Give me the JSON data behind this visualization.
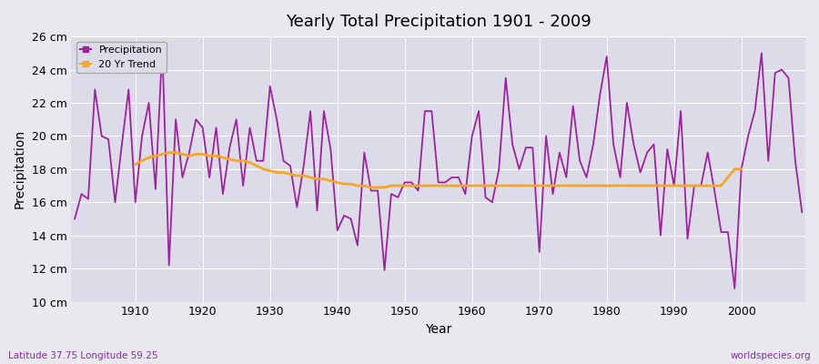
{
  "title": "Yearly Total Precipitation 1901 - 2009",
  "xlabel": "Year",
  "ylabel": "Precipitation",
  "bottom_left": "Latitude 37.75 Longitude 59.25",
  "bottom_right": "worldspecies.org",
  "precip_color": "#a020a0",
  "trend_color": "#f5a623",
  "fig_bg_color": "#e8e8ee",
  "ax_bg_color": "#dcdce8",
  "ylim": [
    10,
    26
  ],
  "yticks": [
    10,
    12,
    14,
    16,
    18,
    20,
    22,
    24,
    26
  ],
  "ytick_labels": [
    "10 cm",
    "12 cm",
    "14 cm",
    "16 cm",
    "18 cm",
    "20 cm",
    "22 cm",
    "24 cm",
    "26 cm"
  ],
  "years": [
    1901,
    1902,
    1903,
    1904,
    1905,
    1906,
    1907,
    1908,
    1909,
    1910,
    1911,
    1912,
    1913,
    1914,
    1915,
    1916,
    1917,
    1918,
    1919,
    1920,
    1921,
    1922,
    1923,
    1924,
    1925,
    1926,
    1927,
    1928,
    1929,
    1930,
    1931,
    1932,
    1933,
    1934,
    1935,
    1936,
    1937,
    1938,
    1939,
    1940,
    1941,
    1942,
    1943,
    1944,
    1945,
    1946,
    1947,
    1948,
    1949,
    1950,
    1951,
    1952,
    1953,
    1954,
    1955,
    1956,
    1957,
    1958,
    1959,
    1960,
    1961,
    1962,
    1963,
    1964,
    1965,
    1966,
    1967,
    1968,
    1969,
    1970,
    1971,
    1972,
    1973,
    1974,
    1975,
    1976,
    1977,
    1978,
    1979,
    1980,
    1981,
    1982,
    1983,
    1984,
    1985,
    1986,
    1987,
    1988,
    1989,
    1990,
    1991,
    1992,
    1993,
    1994,
    1995,
    1996,
    1997,
    1998,
    1999,
    2000,
    2001,
    2002,
    2003,
    2004,
    2005,
    2006,
    2007,
    2008,
    2009
  ],
  "precip": [
    15.0,
    16.5,
    16.2,
    22.8,
    20.0,
    19.8,
    16.0,
    19.5,
    22.8,
    16.0,
    20.0,
    22.0,
    16.8,
    25.4,
    12.2,
    21.0,
    17.5,
    19.0,
    21.0,
    20.5,
    17.5,
    20.5,
    16.5,
    19.3,
    21.0,
    17.0,
    20.5,
    18.5,
    18.5,
    23.0,
    21.0,
    18.5,
    18.2,
    15.7,
    18.2,
    21.5,
    15.5,
    21.5,
    19.2,
    14.3,
    15.2,
    15.0,
    13.4,
    19.0,
    16.7,
    16.7,
    11.9,
    16.5,
    16.3,
    17.2,
    17.2,
    16.7,
    21.5,
    21.5,
    17.2,
    17.2,
    17.5,
    17.5,
    16.5,
    20.0,
    21.5,
    16.3,
    16.0,
    18.0,
    23.5,
    19.5,
    18.0,
    19.3,
    19.3,
    13.0,
    20.0,
    16.5,
    19.0,
    17.5,
    21.8,
    18.5,
    17.5,
    19.5,
    22.5,
    24.8,
    19.5,
    17.5,
    22.0,
    19.5,
    17.8,
    19.0,
    19.5,
    14.0,
    19.2,
    17.0,
    21.5,
    13.8,
    17.0,
    17.0,
    19.0,
    16.7,
    14.2,
    14.2,
    10.8,
    18.0,
    20.0,
    21.5,
    25.0,
    18.5,
    23.8,
    24.0,
    23.5,
    18.5,
    15.4
  ],
  "trend_years": [
    1910,
    1911,
    1912,
    1913,
    1914,
    1915,
    1916,
    1917,
    1918,
    1919,
    1920,
    1921,
    1922,
    1923,
    1924,
    1925,
    1926,
    1927,
    1928,
    1929,
    1930,
    1931,
    1932,
    1933,
    1934,
    1935,
    1936,
    1937,
    1938,
    1939,
    1940,
    1941,
    1942,
    1943,
    1944,
    1945,
    1946,
    1947,
    1948,
    1949,
    1950,
    1951,
    1952,
    1953,
    1954,
    1955,
    1956,
    1957,
    1958,
    1959,
    1960,
    1961,
    1962,
    1963,
    1964,
    1965,
    1966,
    1967,
    1968,
    1969,
    1970,
    1971,
    1972,
    1973,
    1974,
    1975,
    1976,
    1977,
    1978,
    1979,
    1980,
    1981,
    1982,
    1983,
    1984,
    1985,
    1986,
    1987,
    1988,
    1989,
    1990,
    1991,
    1992,
    1993,
    1994,
    1995,
    1996,
    1997,
    1998,
    1999,
    2000
  ],
  "trend": [
    18.3,
    18.5,
    18.7,
    18.8,
    18.9,
    19.0,
    19.0,
    18.9,
    18.8,
    18.9,
    18.9,
    18.8,
    18.8,
    18.7,
    18.6,
    18.5,
    18.5,
    18.4,
    18.2,
    18.0,
    17.9,
    17.8,
    17.8,
    17.7,
    17.6,
    17.6,
    17.5,
    17.4,
    17.4,
    17.3,
    17.2,
    17.1,
    17.1,
    17.0,
    17.0,
    16.9,
    16.9,
    16.9,
    17.0,
    17.0,
    17.0,
    17.0,
    17.0,
    17.0,
    17.0,
    17.0,
    17.0,
    17.0,
    17.0,
    17.0,
    17.0,
    17.0,
    17.0,
    17.0,
    17.0,
    17.0,
    17.0,
    17.0,
    17.0,
    17.0,
    17.0,
    17.0,
    17.0,
    17.0,
    17.0,
    17.0,
    17.0,
    17.0,
    17.0,
    17.0,
    17.0,
    17.0,
    17.0,
    17.0,
    17.0,
    17.0,
    17.0,
    17.0,
    17.0,
    17.0,
    17.0,
    17.0,
    17.0,
    17.0,
    17.0,
    17.0,
    17.0,
    17.0,
    17.5,
    18.0,
    18.0
  ]
}
